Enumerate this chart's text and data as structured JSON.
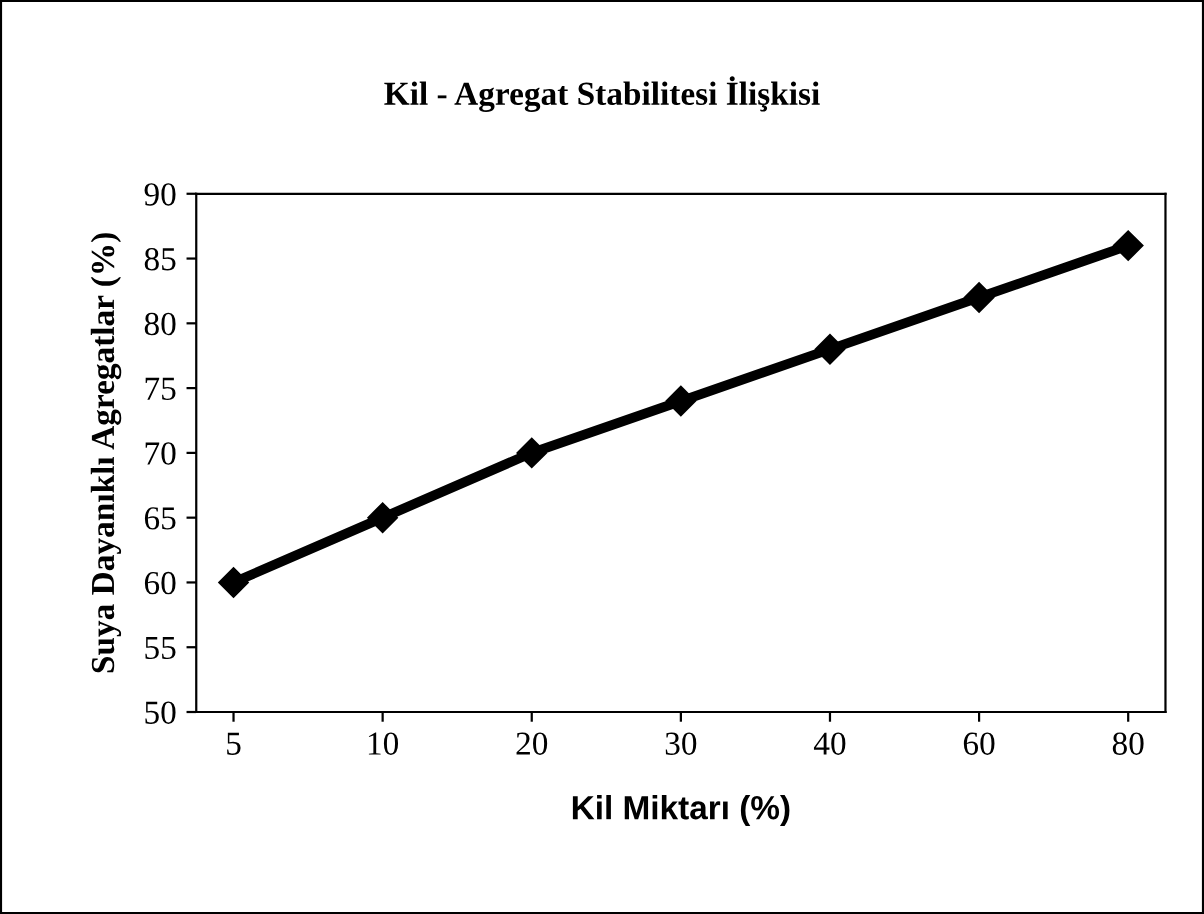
{
  "chart_data": {
    "type": "line",
    "title": "Kil - Agregat Stabilitesi İlişkisi",
    "xlabel": "Kil Miktarı (%)",
    "ylabel": "Suya Dayanıklı Agregatlar (%)",
    "categories": [
      "5",
      "10",
      "20",
      "30",
      "40",
      "60",
      "80"
    ],
    "series": [
      {
        "color": "#000000",
        "values": [
          60,
          65,
          70,
          74,
          78,
          82,
          86
        ]
      }
    ],
    "ylim": [
      50,
      90
    ],
    "yticks": [
      50,
      55,
      60,
      65,
      70,
      75,
      80,
      85,
      90
    ],
    "grid": false,
    "legend": false,
    "marker": "diamond",
    "line_style": "solid"
  }
}
